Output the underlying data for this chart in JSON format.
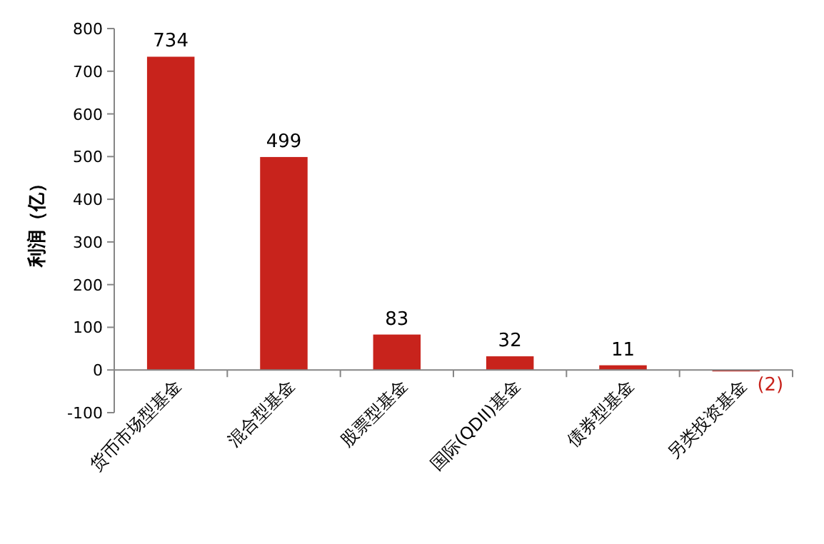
{
  "chart_data": {
    "type": "bar",
    "ylabel": "利润（亿）",
    "categories": [
      "货币市场型基金",
      "混合型基金",
      "股票型基金",
      "国际(QDII)基金",
      "债券型基金",
      "另类投资基金"
    ],
    "values": [
      734,
      499,
      83,
      32,
      11,
      -2
    ],
    "value_labels": [
      "734",
      "499",
      "83",
      "32",
      "11",
      "(2)"
    ],
    "color": "#c8231c",
    "ylim": [
      -100,
      800
    ],
    "yticks": [
      -100,
      0,
      100,
      200,
      300,
      400,
      500,
      600,
      700,
      800
    ],
    "grid": false
  }
}
